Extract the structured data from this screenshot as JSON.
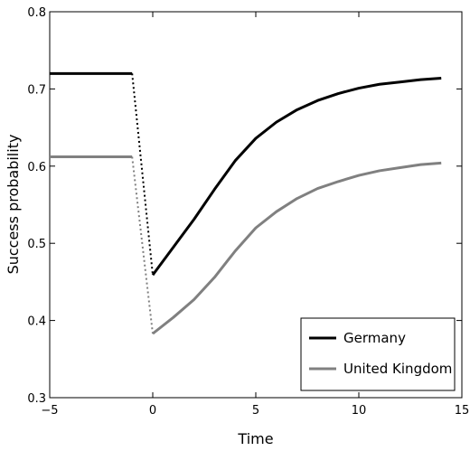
{
  "chart_data": {
    "type": "line",
    "title": "",
    "xlabel": "Time",
    "ylabel": "Success probability",
    "xlim": [
      -5,
      15
    ],
    "ylim": [
      0.3,
      0.8
    ],
    "xticks": [
      -5,
      0,
      5,
      10,
      15
    ],
    "xtick_labels": [
      "−5",
      "0",
      "5",
      "10",
      "15"
    ],
    "yticks": [
      0.3,
      0.4,
      0.5,
      0.6,
      0.7,
      0.8
    ],
    "ytick_labels": [
      "0.3",
      "0.4",
      "0.5",
      "0.6",
      "0.7",
      "0.8"
    ],
    "grid": false,
    "legend_position": "bottom-right",
    "series": [
      {
        "name": "Germany",
        "color": "#000000",
        "before": {
          "x": [
            -5,
            -1
          ],
          "y": [
            0.72,
            0.72
          ]
        },
        "transition": {
          "x": [
            -1,
            0
          ],
          "y": [
            0.72,
            0.459
          ]
        },
        "after": {
          "x": [
            0,
            1,
            2,
            3,
            4,
            5,
            6,
            7,
            8,
            9,
            10,
            11,
            12,
            13,
            14
          ],
          "y": [
            0.459,
            0.495,
            0.531,
            0.57,
            0.607,
            0.636,
            0.657,
            0.673,
            0.685,
            0.694,
            0.701,
            0.706,
            0.709,
            0.712,
            0.714
          ]
        }
      },
      {
        "name": "United Kingdom",
        "color": "#808080",
        "before": {
          "x": [
            -5,
            -1
          ],
          "y": [
            0.612,
            0.612
          ]
        },
        "transition": {
          "x": [
            -1,
            0
          ],
          "y": [
            0.612,
            0.383
          ]
        },
        "after": {
          "x": [
            0,
            1,
            2,
            3,
            4,
            5,
            6,
            7,
            8,
            9,
            10,
            11,
            12,
            13,
            14
          ],
          "y": [
            0.383,
            0.404,
            0.427,
            0.456,
            0.49,
            0.52,
            0.541,
            0.558,
            0.571,
            0.58,
            0.588,
            0.594,
            0.598,
            0.602,
            0.604
          ]
        }
      }
    ]
  }
}
